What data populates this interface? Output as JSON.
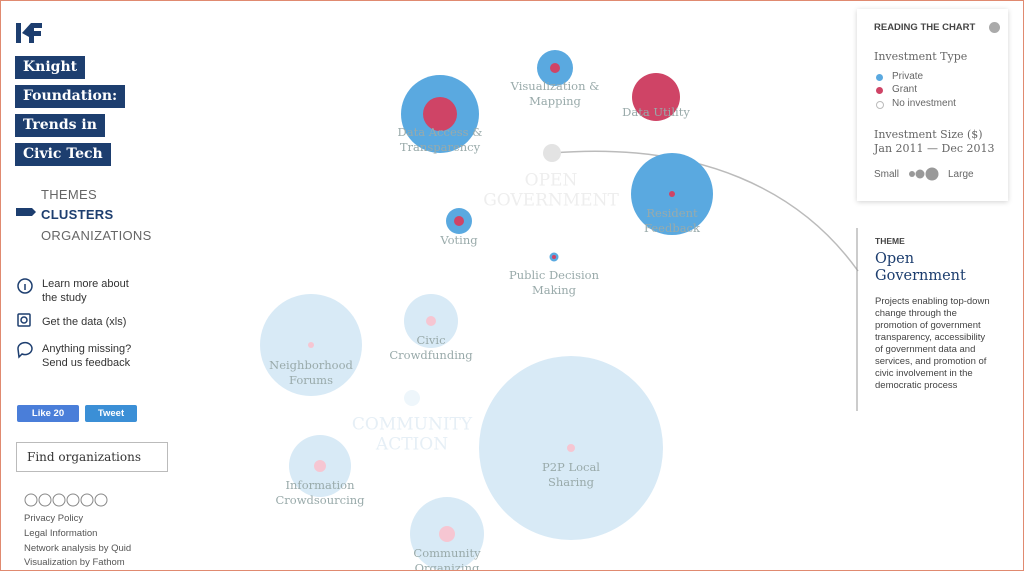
{
  "sidebar": {
    "title_lines": [
      "Knight",
      "Foundation:",
      "Trends in",
      "Civic Tech"
    ],
    "nav": [
      "THEMES",
      "CLUSTERS",
      "ORGANIZATIONS"
    ],
    "links": [
      [
        "Learn more about",
        "the study"
      ],
      [
        "Get the data (xls)"
      ],
      [
        "Anything missing?",
        "Send us feedback"
      ]
    ],
    "social": [
      "Like 20",
      "Tweet"
    ],
    "search": "Find organizations",
    "footer": [
      "Privacy Policy",
      "Legal Information",
      "Network analysis by Quid",
      "Visualization by Fathom"
    ]
  },
  "chart": {
    "groups": [
      [
        "OPEN",
        "GOVERNMENT"
      ],
      [
        "COMMUNITY",
        "ACTION"
      ]
    ],
    "clusters": [
      [
        "Data Access &",
        "Transparency"
      ],
      [
        "Visualization &",
        "Mapping"
      ],
      [
        "Data Utility"
      ],
      [
        "Resident",
        "Feedback"
      ],
      [
        "Voting"
      ],
      [
        "Public Decision",
        "Making"
      ],
      [
        "Neighborhood",
        "Forums"
      ],
      [
        "Civic",
        "Crowdfunding"
      ],
      [
        "P2P Local",
        "Sharing"
      ],
      [
        "Information",
        "Crowdsourcing"
      ],
      [
        "Community",
        "Organizing"
      ]
    ]
  },
  "legend": {
    "title": "READING THE CHART",
    "type_title": "Investment Type",
    "types": [
      "Private",
      "Grant",
      "No investment"
    ],
    "size_title": "Investment Size ($)",
    "period": "Jan 2011 — Dec 2013",
    "small": "Small",
    "large": "Large"
  },
  "theme": {
    "kicker": "THEME",
    "name": "Open Government",
    "description": [
      "Projects enabling top-down",
      "change through the",
      "promotion of government",
      "transparency, accessibility",
      "of government data and",
      "services, and promotion of",
      "civic involvement in the",
      "democratic process"
    ]
  }
}
